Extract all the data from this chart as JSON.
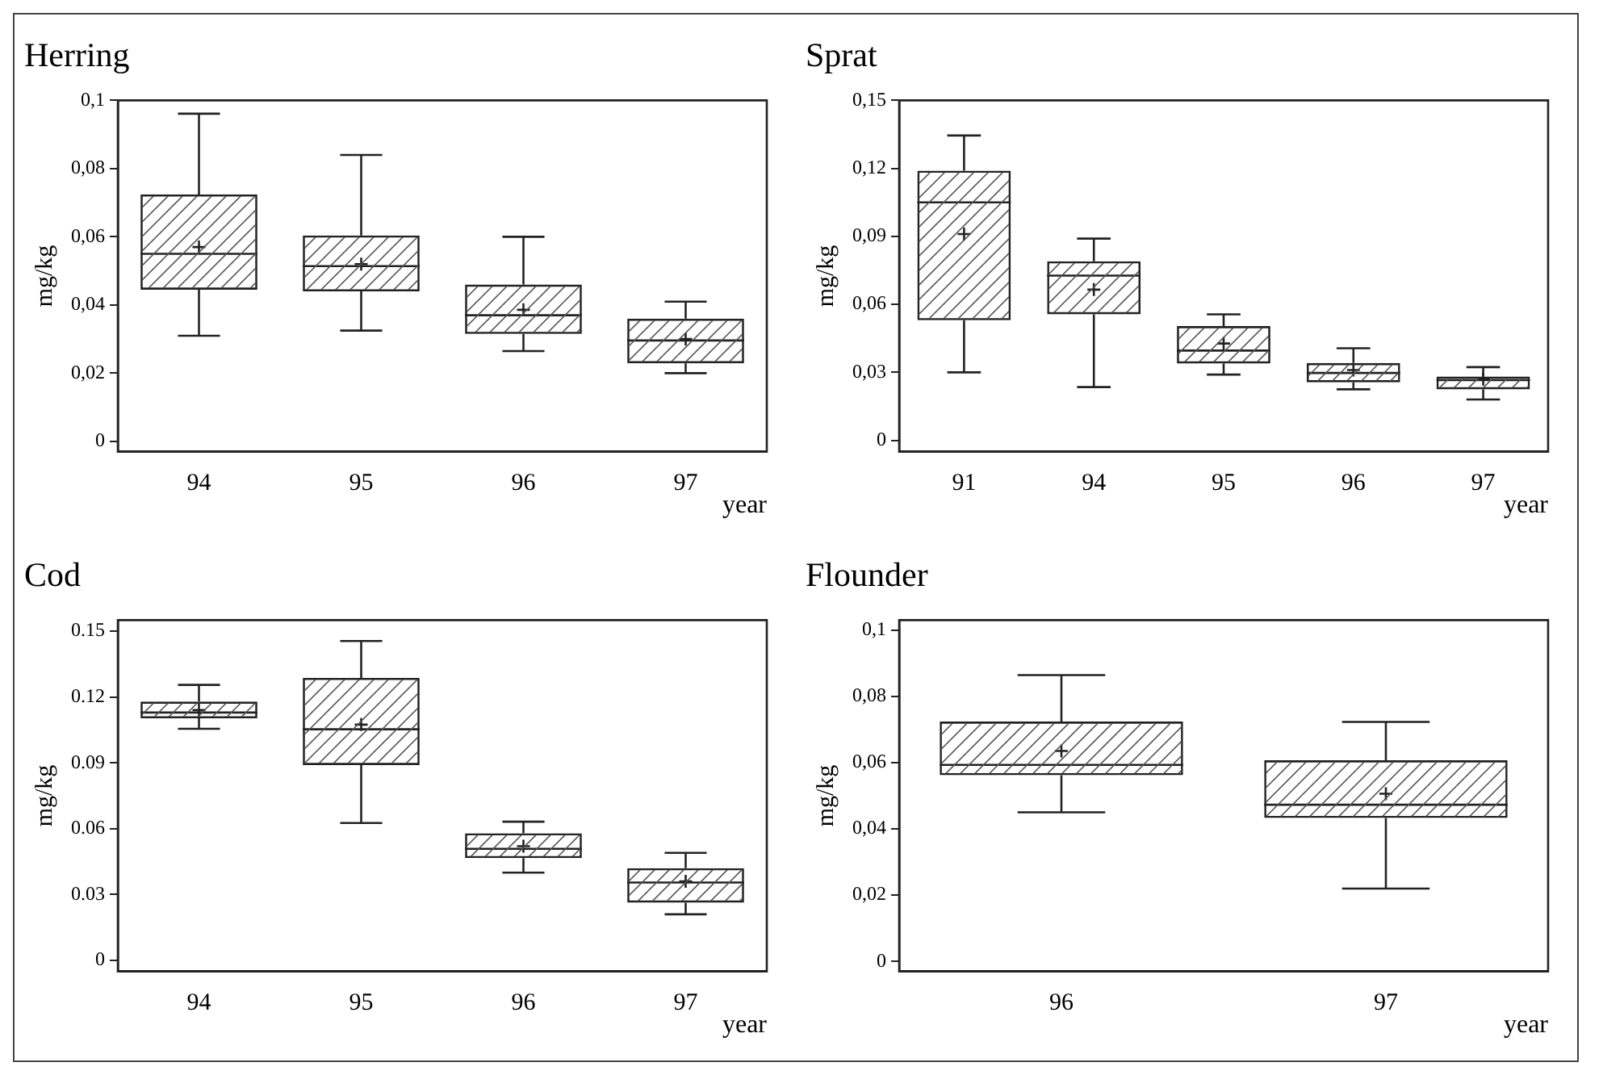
{
  "chart_data": [
    {
      "type": "box",
      "title": "Herring",
      "ylabel": "mg/kg",
      "xlabel": "year",
      "color": "#222222",
      "categories": [
        "94",
        "95",
        "96",
        "97"
      ],
      "ylim": [
        -0.003,
        0.1
      ],
      "yticks": [
        0,
        {
          "value": 0.02,
          "label": "0,02"
        },
        {
          "value": 0.04,
          "label": "0,04"
        },
        {
          "value": 0.06,
          "label": "0,06"
        },
        {
          "value": 0.08,
          "label": "0,08"
        },
        {
          "value": 0.1,
          "label": "0,1"
        }
      ],
      "boxes": [
        {
          "low": 0.031,
          "q1": 0.0445,
          "median": 0.055,
          "q3": 0.0724,
          "high": 0.0961,
          "mean": 0.057
        },
        {
          "low": 0.0325,
          "q1": 0.044,
          "median": 0.0514,
          "q3": 0.0604,
          "high": 0.084,
          "mean": 0.052
        },
        {
          "low": 0.0265,
          "q1": 0.0315,
          "median": 0.037,
          "q3": 0.046,
          "high": 0.06,
          "mean": 0.0386
        },
        {
          "low": 0.02,
          "q1": 0.0229,
          "median": 0.0296,
          "q3": 0.036,
          "high": 0.041,
          "mean": 0.03
        }
      ]
    },
    {
      "type": "box",
      "title": "Sprat",
      "ylabel": "mg/kg",
      "xlabel": "year",
      "color": "#222222",
      "categories": [
        "91",
        "94",
        "95",
        "96",
        "97"
      ],
      "ylim": [
        -0.005,
        0.15
      ],
      "yticks": [
        0,
        {
          "value": 0.03,
          "label": "0,03"
        },
        {
          "value": 0.06,
          "label": "0,06"
        },
        {
          "value": 0.09,
          "label": "0,09"
        },
        {
          "value": 0.12,
          "label": "0,12"
        },
        {
          "value": 0.15,
          "label": "0,15"
        }
      ],
      "boxes": [
        {
          "low": 0.03,
          "q1": 0.053,
          "median": 0.105,
          "q3": 0.119,
          "high": 0.1345,
          "mean": 0.091
        },
        {
          "low": 0.0235,
          "q1": 0.0556,
          "median": 0.0727,
          "q3": 0.079,
          "high": 0.089,
          "mean": 0.0665
        },
        {
          "low": 0.029,
          "q1": 0.0339,
          "median": 0.0396,
          "q3": 0.0504,
          "high": 0.0556,
          "mean": 0.0427
        },
        {
          "low": 0.0225,
          "q1": 0.0256,
          "median": 0.0297,
          "q3": 0.0341,
          "high": 0.0406,
          "mean": 0.031
        },
        {
          "low": 0.018,
          "q1": 0.0225,
          "median": 0.0266,
          "q3": 0.0282,
          "high": 0.0323,
          "mean": 0.027
        }
      ]
    },
    {
      "type": "box",
      "title": "Cod",
      "ylabel": "mg/kg",
      "xlabel": "year",
      "color": "#222222",
      "categories": [
        "94",
        "95",
        "96",
        "97"
      ],
      "ylim": [
        -0.005,
        0.155
      ],
      "yticks": [
        0,
        0.03,
        0.06,
        0.09,
        0.12,
        0.15
      ],
      "boxes": [
        {
          "low": 0.1055,
          "q1": 0.1103,
          "median": 0.1129,
          "q3": 0.1179,
          "high": 0.1255,
          "mean": 0.114
        },
        {
          "low": 0.0626,
          "q1": 0.089,
          "median": 0.1053,
          "q3": 0.1287,
          "high": 0.1455,
          "mean": 0.1074
        },
        {
          "low": 0.04,
          "q1": 0.0466,
          "median": 0.0508,
          "q3": 0.0579,
          "high": 0.0632,
          "mean": 0.052
        },
        {
          "low": 0.021,
          "q1": 0.0263,
          "median": 0.0355,
          "q3": 0.042,
          "high": 0.049,
          "mean": 0.036
        }
      ]
    },
    {
      "type": "box",
      "title": "Flounder",
      "ylabel": "mg/kg",
      "xlabel": "year",
      "color": "#222222",
      "categories": [
        "96",
        "97"
      ],
      "ylim": [
        -0.003,
        0.103
      ],
      "yticks": [
        0,
        {
          "value": 0.02,
          "label": "0,02"
        },
        {
          "value": 0.04,
          "label": "0,04"
        },
        {
          "value": 0.06,
          "label": "0,06"
        },
        {
          "value": 0.08,
          "label": "0,08"
        },
        {
          "value": 0.1,
          "label": "0,1"
        }
      ],
      "boxes": [
        {
          "low": 0.045,
          "q1": 0.0562,
          "median": 0.0593,
          "q3": 0.0724,
          "high": 0.0864,
          "mean": 0.0635
        },
        {
          "low": 0.022,
          "q1": 0.0433,
          "median": 0.0473,
          "q3": 0.0607,
          "high": 0.0723,
          "mean": 0.0506
        }
      ]
    }
  ]
}
